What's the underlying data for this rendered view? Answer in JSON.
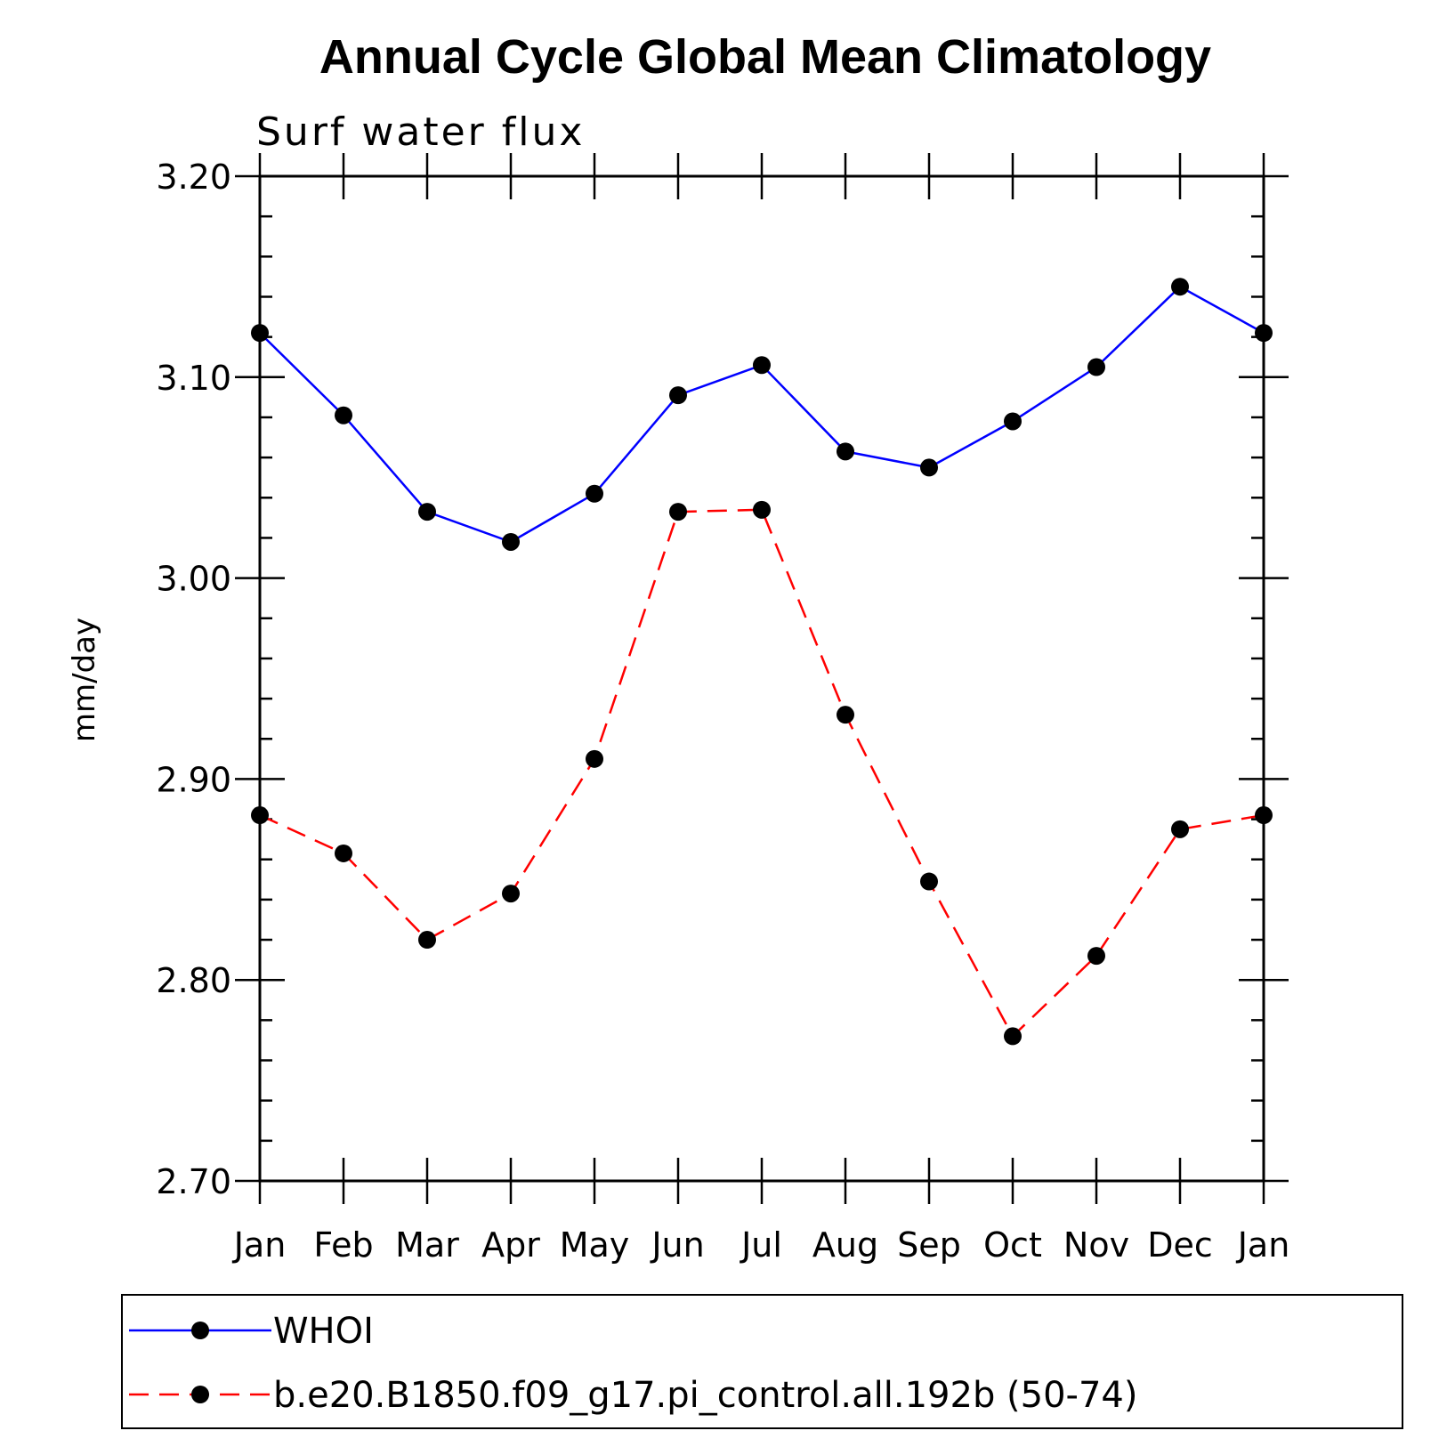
{
  "chart_data": {
    "type": "line",
    "title": "Annual Cycle Global Mean Climatology",
    "subtitle": "Surf water flux",
    "xlabel": "",
    "ylabel": "mm/day",
    "categories": [
      "Jan",
      "Feb",
      "Mar",
      "Apr",
      "May",
      "Jun",
      "Jul",
      "Aug",
      "Sep",
      "Oct",
      "Nov",
      "Dec",
      "Jan"
    ],
    "ylim": [
      2.7,
      3.2
    ],
    "yticks": [
      "2.70",
      "2.80",
      "2.90",
      "3.00",
      "3.10",
      "3.20"
    ],
    "grid": false,
    "legend_position": "bottom",
    "series": [
      {
        "name": "WHOI",
        "color": "#0000ff",
        "dash": "solid",
        "marker": "filled-circle",
        "values": [
          3.122,
          3.081,
          3.033,
          3.018,
          3.042,
          3.091,
          3.106,
          3.063,
          3.055,
          3.078,
          3.105,
          3.145,
          3.122
        ]
      },
      {
        "name": "b.e20.B1850.f09_g17.pi_control.all.192b (50-74)",
        "color": "#ff0000",
        "dash": "dashed",
        "marker": "filled-circle",
        "values": [
          2.882,
          2.863,
          2.82,
          2.843,
          2.91,
          3.033,
          3.034,
          2.932,
          2.849,
          2.772,
          2.812,
          2.875,
          2.882
        ]
      }
    ]
  }
}
